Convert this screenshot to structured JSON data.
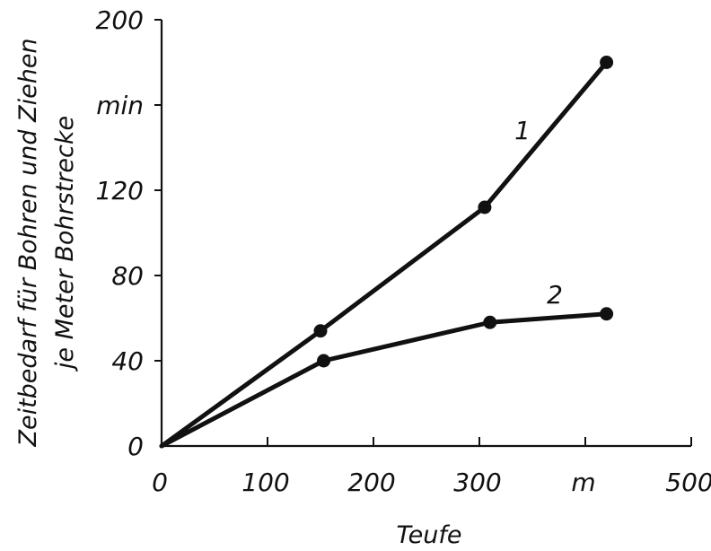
{
  "chart_data": {
    "type": "line",
    "xlabel": "Teufe",
    "ylabel_line1": "Zeitbedarf für Bohren und Ziehen",
    "ylabel_line2": "je Meter Bohrstrecke",
    "xlim": [
      0,
      500
    ],
    "ylim": [
      0,
      200
    ],
    "grid": false,
    "x_ticks": [
      {
        "value": 0,
        "label": "0"
      },
      {
        "value": 100,
        "label": "100"
      },
      {
        "value": 200,
        "label": "200"
      },
      {
        "value": 300,
        "label": "300"
      },
      {
        "value": 400,
        "label": "m"
      },
      {
        "value": 500,
        "label": "500"
      }
    ],
    "y_ticks": [
      {
        "value": 0,
        "label": "0"
      },
      {
        "value": 40,
        "label": "40"
      },
      {
        "value": 80,
        "label": "80"
      },
      {
        "value": 120,
        "label": "120"
      },
      {
        "value": 160,
        "label": "min"
      },
      {
        "value": 200,
        "label": "200"
      }
    ],
    "series": [
      {
        "name": "1",
        "x": [
          0,
          150,
          305,
          420
        ],
        "y": [
          0,
          54,
          112,
          180
        ]
      },
      {
        "name": "2",
        "x": [
          0,
          153,
          310,
          420
        ],
        "y": [
          0,
          40,
          58,
          62
        ]
      }
    ]
  }
}
